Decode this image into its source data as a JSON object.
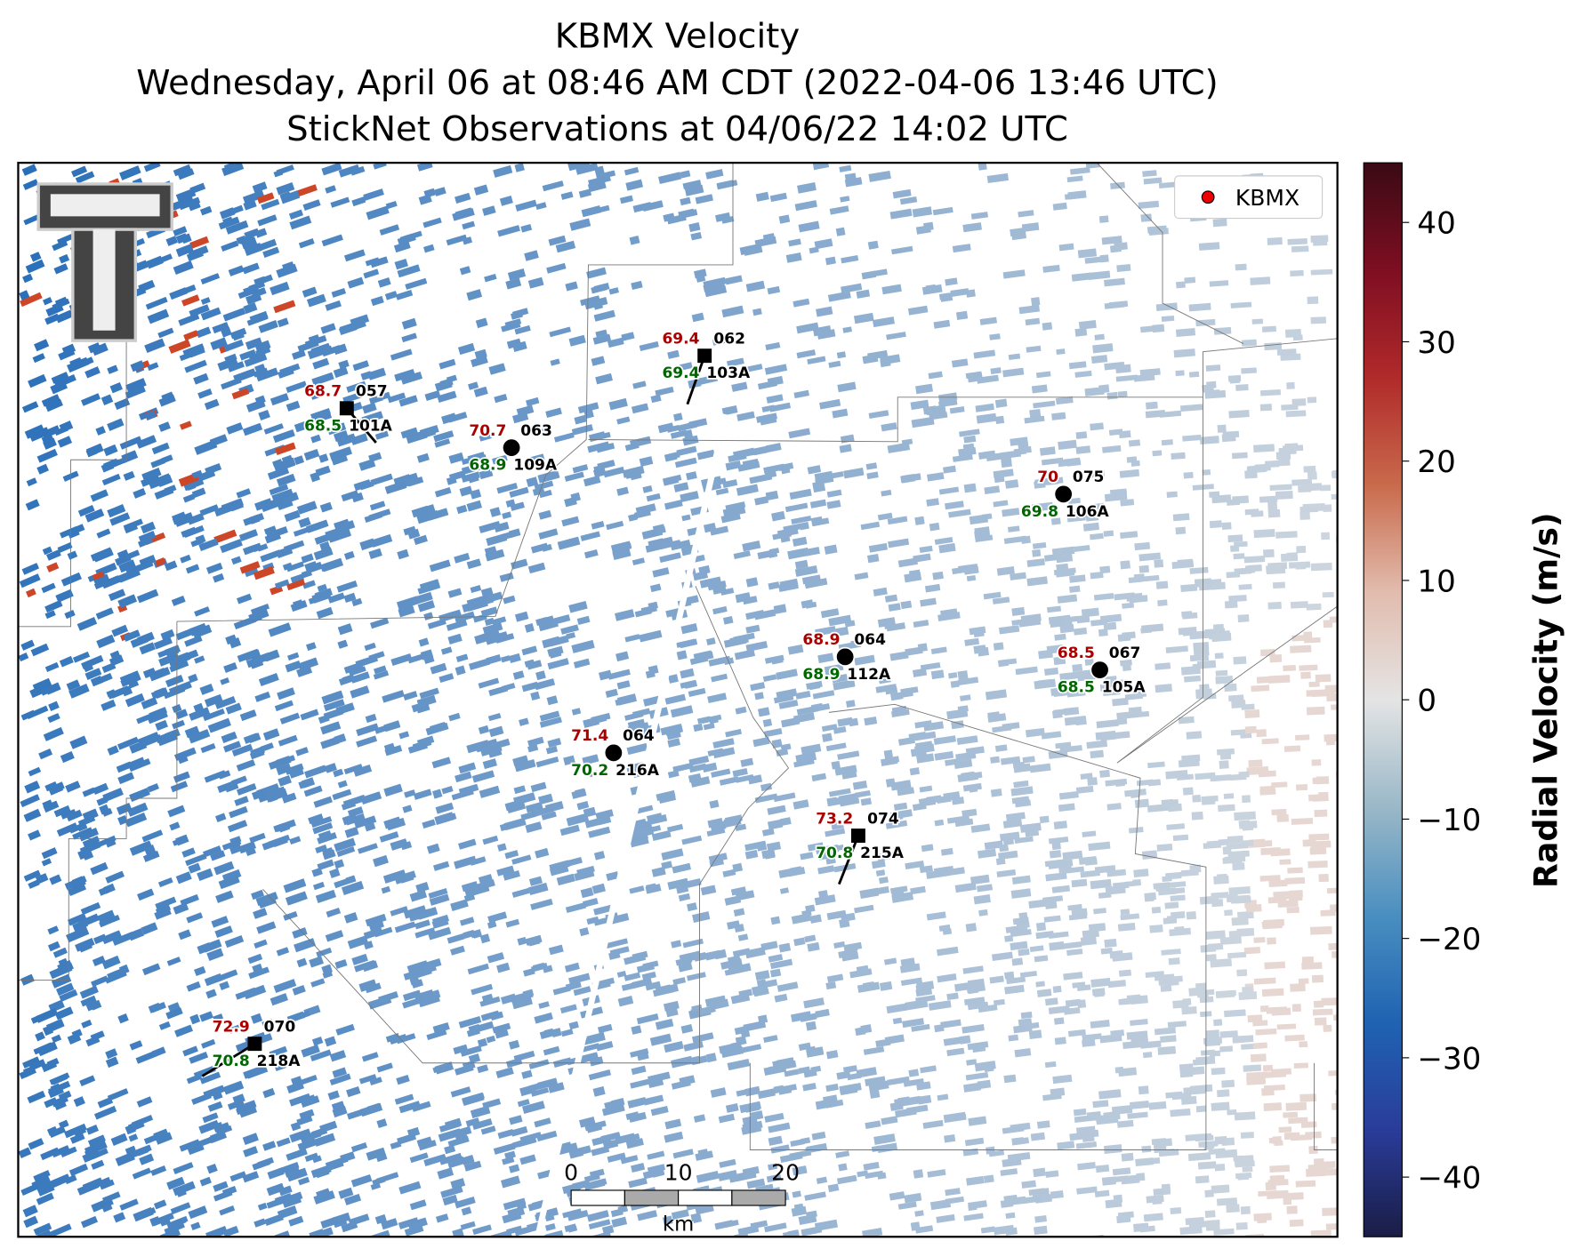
{
  "header": {
    "title": [
      "KBMX Velocity",
      "Wednesday, April 06 at 08:46 AM CDT (2022-04-06 13:46 UTC)",
      "StickNet Observations at 04/06/22 14:02 UTC"
    ]
  },
  "legend": {
    "label": "KBMX"
  },
  "colorbar": {
    "label": "Radial Velocity (m/s)",
    "clim": [
      -45,
      45
    ],
    "ticks": [
      {
        "value": -40,
        "label": "−40"
      },
      {
        "value": -30,
        "label": "−30"
      },
      {
        "value": -20,
        "label": "−20"
      },
      {
        "value": -10,
        "label": "−10"
      },
      0,
      10,
      20,
      30,
      40
    ]
  },
  "stations": [
    {
      "temp": 68.7,
      "dew": 68.5,
      "code": "057",
      "id": "101A"
    },
    {
      "temp": 69.4,
      "dew": 69.4,
      "code": "062",
      "id": "103A"
    },
    {
      "temp": 70.7,
      "dew": 68.9,
      "code": "063",
      "id": "109A"
    },
    {
      "temp": 70.0,
      "dew": 69.8,
      "code": "075",
      "id": "106A"
    },
    {
      "temp": 68.9,
      "dew": 68.9,
      "code": "064",
      "id": "112A"
    },
    {
      "temp": 68.5,
      "dew": 68.5,
      "code": "067",
      "id": "105A"
    },
    {
      "temp": 71.4,
      "dew": 70.2,
      "code": "064",
      "id": "216A"
    },
    {
      "temp": 73.2,
      "dew": 70.8,
      "code": "074",
      "id": "215A"
    },
    {
      "temp": 72.9,
      "dew": 70.8,
      "code": "070",
      "id": "218A"
    }
  ],
  "scale_bar": {
    "ticks": [
      0,
      10,
      20
    ],
    "unit": "km"
  }
}
